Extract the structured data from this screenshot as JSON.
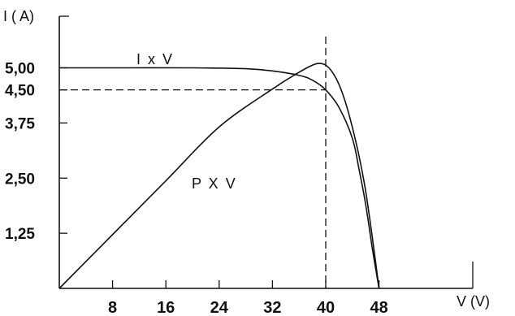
{
  "chart_data": {
    "type": "line",
    "title": "",
    "xlabel": "V (V)",
    "ylabel": "I ( A)",
    "xlim": [
      0,
      54
    ],
    "ylim": [
      0,
      5.6
    ],
    "x_ticks": [
      8,
      16,
      24,
      32,
      40,
      48
    ],
    "y_ticks": [
      {
        "value": 1.25,
        "label": "1,25"
      },
      {
        "value": 2.5,
        "label": "2,50"
      },
      {
        "value": 3.75,
        "label": "3,75"
      },
      {
        "value": 4.5,
        "label": "4,50"
      },
      {
        "value": 5.0,
        "label": "5,00"
      }
    ],
    "grid": false,
    "series": [
      {
        "name": "I x V",
        "x": [
          0,
          10,
          20,
          28,
          32,
          36,
          38,
          40,
          42,
          44,
          45,
          46,
          47,
          48
        ],
        "y": [
          5.0,
          5.0,
          5.0,
          4.98,
          4.93,
          4.83,
          4.72,
          4.5,
          4.1,
          3.4,
          2.7,
          1.9,
          0.9,
          0.0
        ]
      },
      {
        "name": "P X V",
        "x": [
          0,
          8,
          16,
          24,
          32,
          36,
          38,
          39,
          40,
          41,
          42,
          43,
          44,
          45,
          46,
          47,
          48
        ],
        "y": [
          0.0,
          1.22,
          2.44,
          3.66,
          4.52,
          4.9,
          5.06,
          5.1,
          5.06,
          4.9,
          4.62,
          4.2,
          3.65,
          3.0,
          2.2,
          1.15,
          0.0
        ]
      }
    ],
    "reference_lines": [
      {
        "type": "horizontal",
        "y": 4.5,
        "style": "dashed"
      },
      {
        "type": "vertical",
        "x": 40,
        "style": "dashed"
      }
    ]
  }
}
